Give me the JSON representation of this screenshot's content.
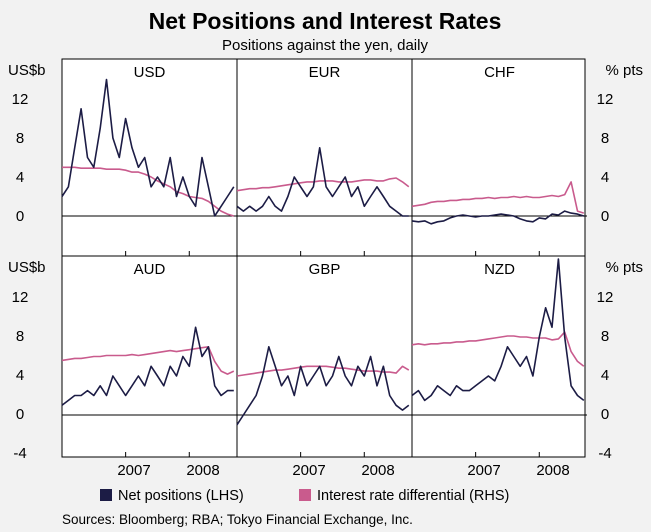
{
  "chart_data": {
    "type": "line",
    "title": "Net Positions and Interest Rates",
    "subtitle": "Positions against the yen, daily",
    "left_unit": "US$b",
    "right_unit": "% pts",
    "top_row_ylim": [
      -2,
      16
    ],
    "bottom_row_ylim": [
      -4,
      16
    ],
    "top_row_ticks": [
      "12",
      "8",
      "4",
      "0"
    ],
    "bottom_row_ticks": [
      "12",
      "8",
      "4",
      "0",
      "-4"
    ],
    "x_tick_labels": [
      "2007",
      "2008"
    ],
    "legend": [
      {
        "name": "Net positions (LHS)",
        "color": "#1c1c45"
      },
      {
        "name": "Interest rate differential (RHS)",
        "color": "#c95b8d"
      }
    ],
    "source": "Sources: Bloomberg; RBA; Tokyo Financial Exchange, Inc.",
    "panels": [
      {
        "currency": "USD",
        "x": [
          2006.0,
          2006.1,
          2006.2,
          2006.3,
          2006.4,
          2006.5,
          2006.6,
          2006.7,
          2006.8,
          2006.9,
          2007.0,
          2007.1,
          2007.2,
          2007.3,
          2007.4,
          2007.5,
          2007.6,
          2007.7,
          2007.8,
          2007.9,
          2008.0,
          2008.1,
          2008.2,
          2008.3,
          2008.4,
          2008.5,
          2008.6,
          2008.7
        ],
        "net": [
          2,
          3,
          7,
          11,
          6,
          5,
          9,
          14,
          8,
          6,
          10,
          7,
          5,
          6,
          3,
          4,
          3,
          6,
          2,
          4,
          2,
          1,
          6,
          3,
          0,
          1,
          2,
          3
        ],
        "diff": [
          5.0,
          5.0,
          5.0,
          4.9,
          4.9,
          4.9,
          4.9,
          4.8,
          4.8,
          4.8,
          4.7,
          4.5,
          4.5,
          4.3,
          4.0,
          3.6,
          3.3,
          3.0,
          2.5,
          2.3,
          2.0,
          1.9,
          1.8,
          1.5,
          1.0,
          0.5,
          0.2,
          0.0
        ]
      },
      {
        "currency": "EUR",
        "x": [
          2006.0,
          2006.1,
          2006.2,
          2006.3,
          2006.4,
          2006.5,
          2006.6,
          2006.7,
          2006.8,
          2006.9,
          2007.0,
          2007.1,
          2007.2,
          2007.3,
          2007.4,
          2007.5,
          2007.6,
          2007.7,
          2007.8,
          2007.9,
          2008.0,
          2008.1,
          2008.2,
          2008.3,
          2008.4,
          2008.5,
          2008.6,
          2008.7
        ],
        "net": [
          1,
          0.5,
          1,
          0.5,
          1,
          2,
          1,
          0.5,
          2,
          4,
          3,
          2,
          3,
          7,
          3,
          2,
          3,
          4,
          2,
          3,
          1,
          2,
          3,
          2,
          1,
          0.5,
          0,
          0
        ],
        "diff": [
          2.6,
          2.7,
          2.8,
          2.8,
          2.9,
          2.9,
          3.0,
          3.1,
          3.2,
          3.3,
          3.4,
          3.5,
          3.5,
          3.6,
          3.6,
          3.6,
          3.5,
          3.5,
          3.5,
          3.6,
          3.7,
          3.7,
          3.6,
          3.6,
          3.8,
          3.9,
          3.5,
          3.0
        ]
      },
      {
        "currency": "CHF",
        "x": [
          2006.0,
          2006.1,
          2006.2,
          2006.3,
          2006.4,
          2006.5,
          2006.6,
          2006.7,
          2006.8,
          2006.9,
          2007.0,
          2007.1,
          2007.2,
          2007.3,
          2007.4,
          2007.5,
          2007.6,
          2007.7,
          2007.8,
          2007.9,
          2008.0,
          2008.1,
          2008.2,
          2008.3,
          2008.4,
          2008.5,
          2008.6,
          2008.7
        ],
        "net": [
          -0.5,
          -0.6,
          -0.5,
          -0.8,
          -0.6,
          -0.5,
          -0.2,
          0,
          0.1,
          0,
          -0.1,
          0,
          0,
          0.1,
          0.2,
          0.1,
          0,
          -0.3,
          -0.5,
          -0.6,
          -0.2,
          -0.3,
          0.2,
          0.1,
          0.5,
          0.3,
          0.2,
          0
        ],
        "diff": [
          1.0,
          1.1,
          1.2,
          1.4,
          1.5,
          1.5,
          1.6,
          1.6,
          1.7,
          1.7,
          1.8,
          1.8,
          1.9,
          1.8,
          1.9,
          1.9,
          2.0,
          1.9,
          2.0,
          1.9,
          1.9,
          2.0,
          2.1,
          2.0,
          2.2,
          3.5,
          0.5,
          0.3
        ]
      },
      {
        "currency": "AUD",
        "x": [
          2006.0,
          2006.1,
          2006.2,
          2006.3,
          2006.4,
          2006.5,
          2006.6,
          2006.7,
          2006.8,
          2006.9,
          2007.0,
          2007.1,
          2007.2,
          2007.3,
          2007.4,
          2007.5,
          2007.6,
          2007.7,
          2007.8,
          2007.9,
          2008.0,
          2008.1,
          2008.2,
          2008.3,
          2008.4,
          2008.5,
          2008.6,
          2008.7
        ],
        "net": [
          1,
          1.5,
          2,
          2,
          2.5,
          2,
          3,
          2,
          4,
          3,
          2,
          3,
          4,
          3,
          5,
          4,
          3,
          5,
          4,
          6,
          5,
          9,
          6,
          7,
          3,
          2,
          2.5,
          2.5
        ],
        "diff": [
          5.6,
          5.7,
          5.8,
          5.8,
          5.9,
          6.0,
          6.0,
          6.1,
          6.1,
          6.1,
          6.1,
          6.2,
          6.1,
          6.2,
          6.3,
          6.4,
          6.5,
          6.6,
          6.5,
          6.6,
          6.7,
          6.8,
          6.9,
          7.0,
          5.5,
          4.5,
          4.2,
          4.5
        ]
      },
      {
        "currency": "GBP",
        "x": [
          2006.0,
          2006.1,
          2006.2,
          2006.3,
          2006.4,
          2006.5,
          2006.6,
          2006.7,
          2006.8,
          2006.9,
          2007.0,
          2007.1,
          2007.2,
          2007.3,
          2007.4,
          2007.5,
          2007.6,
          2007.7,
          2007.8,
          2007.9,
          2008.0,
          2008.1,
          2008.2,
          2008.3,
          2008.4,
          2008.5,
          2008.6,
          2008.7
        ],
        "net": [
          -1,
          0,
          1,
          2,
          4,
          7,
          5,
          3,
          4,
          2,
          5,
          3,
          4,
          5,
          3,
          4,
          6,
          4,
          3,
          5,
          4,
          6,
          3,
          5,
          2,
          1,
          0.5,
          1
        ],
        "diff": [
          4.0,
          4.1,
          4.2,
          4.3,
          4.4,
          4.5,
          4.6,
          4.6,
          4.7,
          4.8,
          4.9,
          5.0,
          5.0,
          5.0,
          5.0,
          4.9,
          4.8,
          4.8,
          4.7,
          4.6,
          4.5,
          4.5,
          4.5,
          4.4,
          4.4,
          4.3,
          5.0,
          4.6
        ]
      },
      {
        "currency": "NZD",
        "x": [
          2006.0,
          2006.1,
          2006.2,
          2006.3,
          2006.4,
          2006.5,
          2006.6,
          2006.7,
          2006.8,
          2006.9,
          2007.0,
          2007.1,
          2007.2,
          2007.3,
          2007.4,
          2007.5,
          2007.6,
          2007.7,
          2007.8,
          2007.9,
          2008.0,
          2008.1,
          2008.2,
          2008.3,
          2008.4,
          2008.5,
          2008.6,
          2008.7
        ],
        "net": [
          2,
          2.5,
          1.5,
          2,
          3,
          2.5,
          2,
          3,
          2.5,
          2.5,
          3,
          3.5,
          4,
          3.5,
          5,
          7,
          6,
          5,
          6,
          4,
          8,
          11,
          9,
          16,
          8,
          3,
          2,
          1.5
        ],
        "diff": [
          7.2,
          7.3,
          7.2,
          7.3,
          7.3,
          7.4,
          7.4,
          7.5,
          7.5,
          7.6,
          7.6,
          7.7,
          7.8,
          7.9,
          8.0,
          8.1,
          8.1,
          8.0,
          8.0,
          7.9,
          7.9,
          7.9,
          7.7,
          7.8,
          8.5,
          6.5,
          5.5,
          5.0
        ]
      }
    ]
  }
}
